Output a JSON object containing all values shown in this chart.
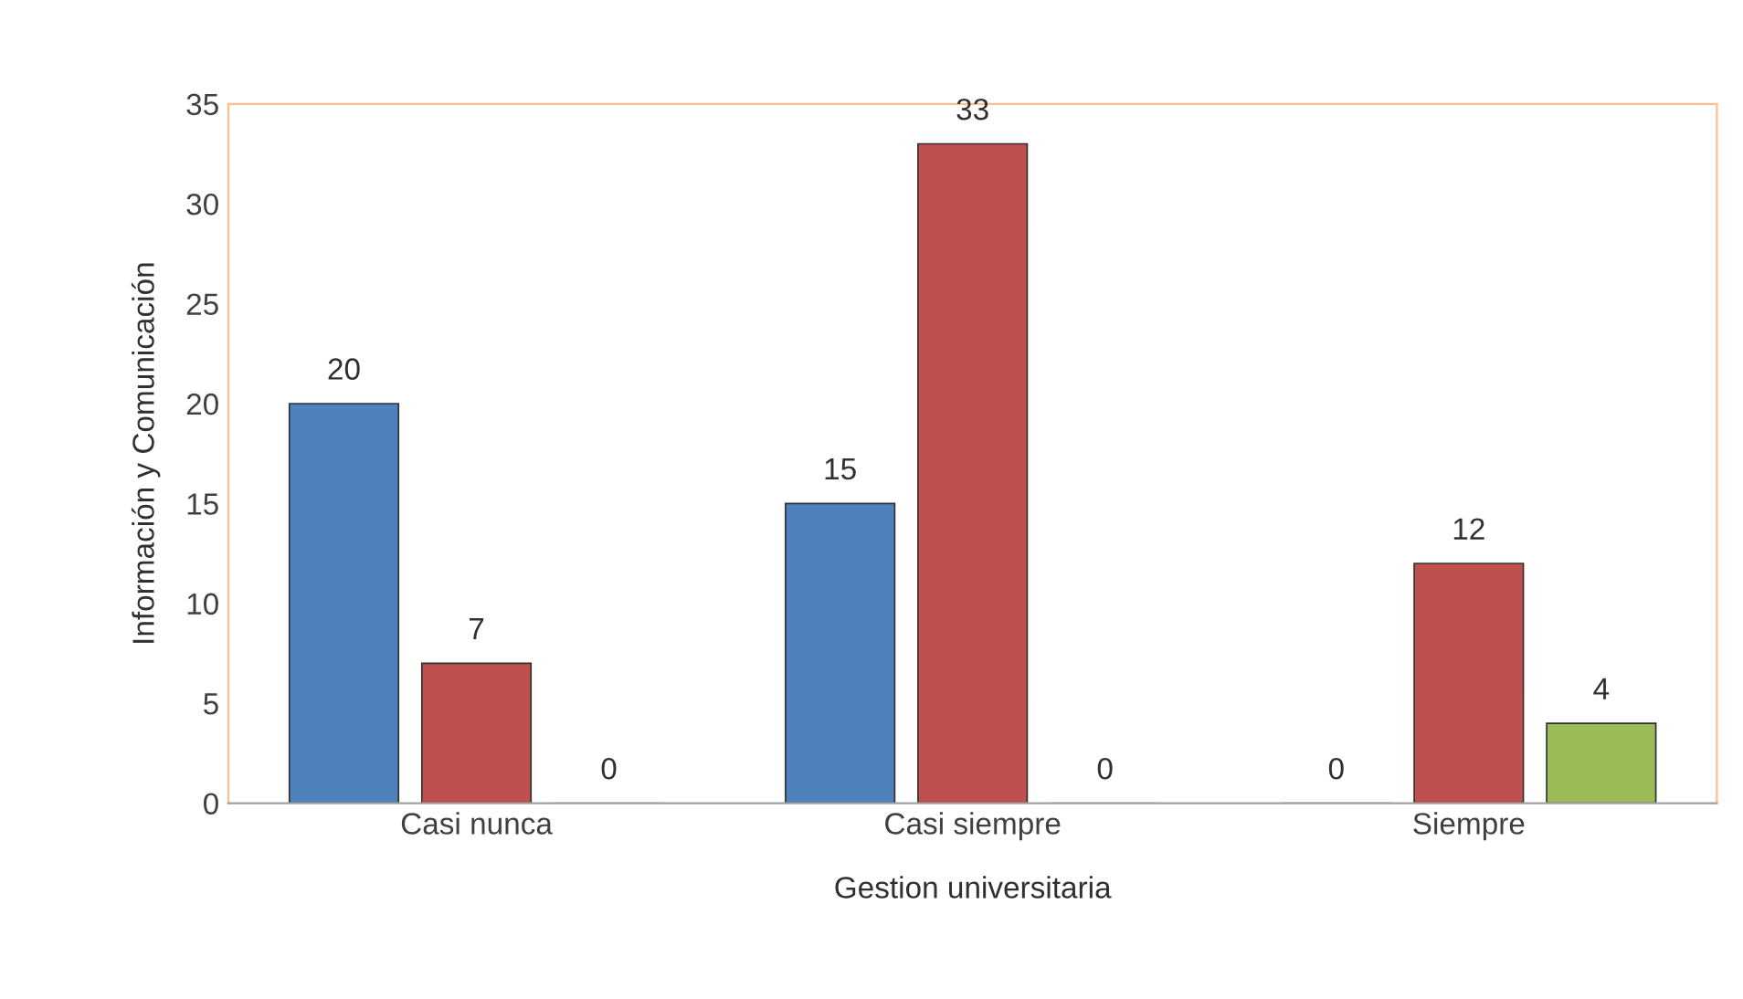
{
  "chart_data": {
    "type": "bar",
    "xlabel": "Gestion universitaria",
    "ylabel": "Información y Comunicación",
    "categories": [
      "Casi nunca",
      "Casi siempre",
      "Siempre"
    ],
    "series": [
      {
        "color": "#4f81bd",
        "values": [
          20,
          15,
          0
        ]
      },
      {
        "color": "#c0504d",
        "values": [
          7,
          33,
          12
        ]
      },
      {
        "color": "#9bbb59",
        "values": [
          0,
          0,
          4
        ]
      }
    ],
    "ylim": [
      0,
      35
    ],
    "yticks": [
      0,
      5,
      10,
      15,
      20,
      25,
      30,
      35
    ],
    "grid": false,
    "legend": false,
    "data_labels": true
  }
}
